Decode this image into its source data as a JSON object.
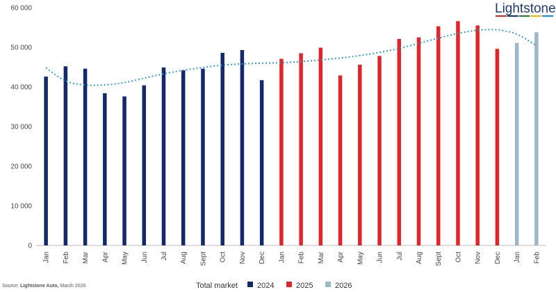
{
  "logo": {
    "text": "Lightstone",
    "stripe_colors": [
      "#c9302c",
      "#1f3a73",
      "#2e7d32",
      "#f2b705",
      "#1a8fd6"
    ]
  },
  "source": {
    "label": "Source:",
    "org": "Lightstone Auto,",
    "date": "March 2026"
  },
  "chart_data": {
    "type": "bar",
    "categories": [
      "Jan",
      "Feb",
      "Mar",
      "Apr",
      "May",
      "Jun",
      "Jul",
      "Aug",
      "Sept",
      "Oct",
      "Nov",
      "Dec",
      "Jan",
      "Feb",
      "Mar",
      "Apr",
      "May",
      "Jun",
      "Jul",
      "Aug",
      "Sept",
      "Oct",
      "Nov",
      "Dec",
      "Jan",
      "Feb"
    ],
    "values": [
      42600,
      45200,
      44600,
      38400,
      37600,
      40400,
      44900,
      44200,
      44600,
      48600,
      49300,
      41700,
      47100,
      48500,
      49900,
      42900,
      45600,
      47800,
      52100,
      52500,
      55300,
      56600,
      55500,
      49600,
      51100,
      53800
    ],
    "groups": [
      2024,
      2024,
      2024,
      2024,
      2024,
      2024,
      2024,
      2024,
      2024,
      2024,
      2024,
      2024,
      2025,
      2025,
      2025,
      2025,
      2025,
      2025,
      2025,
      2025,
      2025,
      2025,
      2025,
      2025,
      2026,
      2026
    ],
    "trend": [
      44800,
      41500,
      40500,
      40500,
      41100,
      42200,
      43300,
      44200,
      44900,
      45500,
      45800,
      46000,
      46100,
      46400,
      46800,
      47300,
      47900,
      48700,
      49700,
      51000,
      52300,
      53500,
      54300,
      54400,
      53300,
      50400
    ],
    "trend_color": "#2a9fc9",
    "ylim": [
      0,
      60000
    ],
    "yticks": [
      0,
      10000,
      20000,
      30000,
      40000,
      50000,
      60000
    ],
    "ytick_labels": [
      "0",
      "10 000",
      "20 000",
      "30 000",
      "40 000",
      "50 000",
      "60 000"
    ],
    "grid": false,
    "legend": {
      "title": "Total market",
      "placement": "bottom-center",
      "items": [
        {
          "label": "2024",
          "group": 2024,
          "color": "#14296b"
        },
        {
          "label": "2025",
          "group": 2025,
          "color": "#e0262a"
        },
        {
          "label": "2026",
          "group": 2026,
          "color": "#9db7c9"
        }
      ]
    }
  }
}
